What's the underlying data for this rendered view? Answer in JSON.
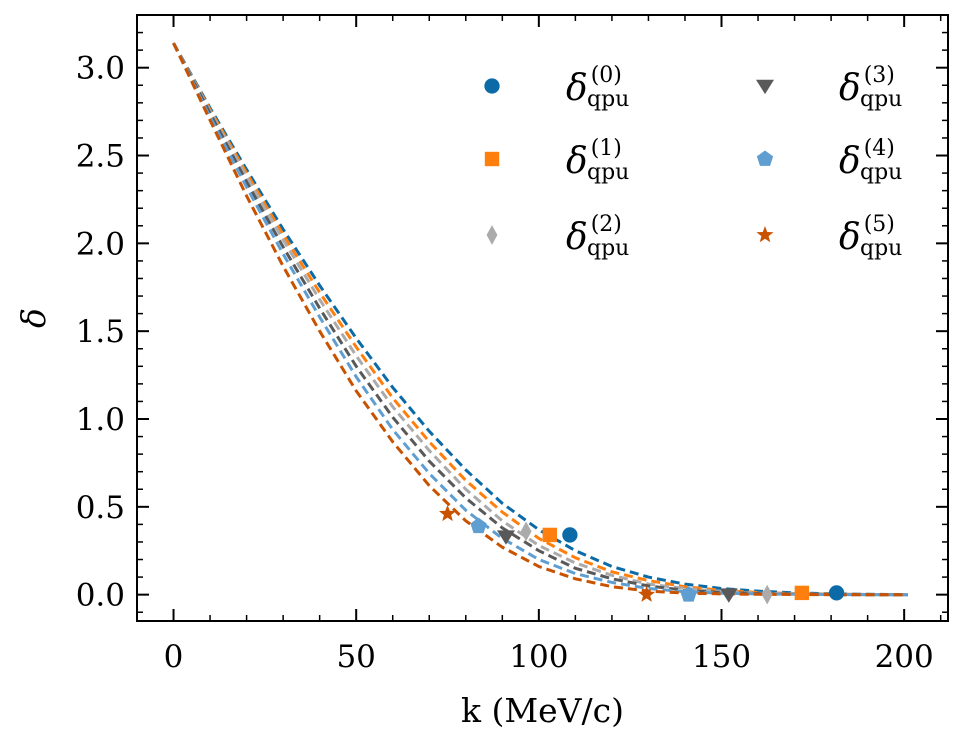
{
  "chart_data": {
    "type": "line",
    "title": "",
    "xlabel": "k (MeV/c)",
    "ylabel": "δ",
    "xlim": [
      -10,
      212
    ],
    "ylim": [
      -0.15,
      3.3
    ],
    "x_ticks": [
      0,
      50,
      100,
      150,
      200
    ],
    "x_tick_labels": [
      "0",
      "50",
      "100",
      "150",
      "200"
    ],
    "y_ticks": [
      0.0,
      0.5,
      1.0,
      1.5,
      2.0,
      2.5,
      3.0
    ],
    "y_tick_labels": [
      "0.0",
      "0.5",
      "1.0",
      "1.5",
      "2.0",
      "2.5",
      "3.0"
    ],
    "grid": false,
    "legend_position": "top-right",
    "legend_columns": 2,
    "series": [
      {
        "legend_symbol": "δ",
        "legend_sup": "(0)",
        "legend_sub": "qpu",
        "color": "#0C6AA6",
        "marker": "circle",
        "curve_x": [
          0,
          10,
          20,
          30,
          40,
          50,
          60,
          70,
          80,
          90,
          100,
          110,
          120,
          130,
          140,
          150,
          160,
          170,
          180,
          190,
          201
        ],
        "curve_y": [
          3.14,
          2.77,
          2.42,
          2.08,
          1.76,
          1.46,
          1.18,
          0.93,
          0.71,
          0.52,
          0.37,
          0.25,
          0.16,
          0.1,
          0.06,
          0.035,
          0.02,
          0.01,
          0.005,
          0.002,
          0.0
        ],
        "points_x": [
          108.5,
          181.5
        ],
        "points_y": [
          0.34,
          0.01
        ]
      },
      {
        "legend_symbol": "δ",
        "legend_sup": "(1)",
        "legend_sub": "qpu",
        "color": "#FF7F0E",
        "marker": "square",
        "curve_x": [
          0,
          10,
          20,
          30,
          40,
          50,
          60,
          70,
          80,
          90,
          100,
          110,
          120,
          130,
          140,
          150,
          160,
          170,
          180,
          190,
          201
        ],
        "curve_y": [
          3.14,
          2.76,
          2.4,
          2.05,
          1.72,
          1.41,
          1.12,
          0.87,
          0.65,
          0.47,
          0.32,
          0.21,
          0.13,
          0.08,
          0.045,
          0.025,
          0.012,
          0.006,
          0.003,
          0.001,
          0.0
        ],
        "points_x": [
          103,
          172
        ],
        "points_y": [
          0.34,
          0.01
        ]
      },
      {
        "legend_symbol": "δ",
        "legend_sup": "(2)",
        "legend_sub": "qpu",
        "color": "#ABABAB",
        "marker": "diamond",
        "curve_x": [
          0,
          10,
          20,
          30,
          40,
          50,
          60,
          70,
          80,
          90,
          100,
          110,
          120,
          130,
          140,
          150,
          160,
          170,
          180,
          190,
          201
        ],
        "curve_y": [
          3.14,
          2.75,
          2.38,
          2.02,
          1.68,
          1.36,
          1.07,
          0.82,
          0.6,
          0.42,
          0.28,
          0.18,
          0.11,
          0.06,
          0.035,
          0.018,
          0.009,
          0.004,
          0.002,
          0.001,
          0.0
        ],
        "points_x": [
          96.5,
          162.5
        ],
        "points_y": [
          0.36,
          0.0
        ]
      },
      {
        "legend_symbol": "δ",
        "legend_sup": "(3)",
        "legend_sub": "qpu",
        "color": "#595959",
        "marker": "triangle-down",
        "curve_x": [
          0,
          10,
          20,
          30,
          40,
          50,
          60,
          70,
          80,
          90,
          100,
          110,
          120,
          130,
          140,
          150,
          160,
          170,
          180,
          190,
          201
        ],
        "curve_y": [
          3.14,
          2.74,
          2.35,
          1.98,
          1.63,
          1.3,
          1.01,
          0.76,
          0.55,
          0.38,
          0.25,
          0.15,
          0.09,
          0.05,
          0.025,
          0.012,
          0.006,
          0.003,
          0.001,
          0.0,
          0.0
        ],
        "points_x": [
          91,
          152
        ],
        "points_y": [
          0.33,
          0.0
        ]
      },
      {
        "legend_symbol": "δ",
        "legend_sup": "(4)",
        "legend_sub": "qpu",
        "color": "#5F9ED1",
        "marker": "pentagon",
        "curve_x": [
          0,
          10,
          20,
          30,
          40,
          50,
          60,
          70,
          80,
          90,
          100,
          110,
          120,
          130,
          140,
          150,
          160,
          170,
          180,
          190,
          201
        ],
        "curve_y": [
          3.14,
          2.72,
          2.32,
          1.94,
          1.58,
          1.24,
          0.94,
          0.69,
          0.48,
          0.32,
          0.2,
          0.12,
          0.07,
          0.035,
          0.017,
          0.008,
          0.004,
          0.002,
          0.001,
          0.0,
          0.0
        ],
        "points_x": [
          83.5,
          141
        ],
        "points_y": [
          0.39,
          0.0
        ]
      },
      {
        "legend_symbol": "δ",
        "legend_sup": "(5)",
        "legend_sub": "qpu",
        "color": "#C85200",
        "marker": "star",
        "curve_x": [
          0,
          10,
          20,
          30,
          40,
          50,
          60,
          70,
          80,
          90,
          100,
          110,
          120,
          130,
          140,
          150,
          160,
          170,
          180,
          190,
          201
        ],
        "curve_y": [
          3.14,
          2.7,
          2.27,
          1.87,
          1.5,
          1.16,
          0.87,
          0.62,
          0.42,
          0.27,
          0.16,
          0.09,
          0.045,
          0.02,
          0.009,
          0.004,
          0.002,
          0.001,
          0.0,
          0.0,
          0.0
        ],
        "points_x": [
          75,
          129.5
        ],
        "points_y": [
          0.46,
          0.0
        ]
      }
    ]
  }
}
